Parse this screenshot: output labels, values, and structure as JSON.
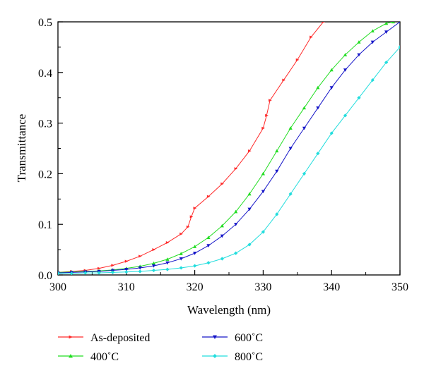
{
  "chart_data": {
    "type": "line",
    "xlabel": "Wavelength (nm)",
    "ylabel": "Transmittance",
    "xlim": [
      300,
      350
    ],
    "ylim": [
      0,
      0.5
    ],
    "x_ticks": [
      300,
      310,
      320,
      330,
      340,
      350
    ],
    "y_ticks": [
      0.0,
      0.1,
      0.2,
      0.3,
      0.4,
      0.5
    ],
    "x_tick_labels": [
      "300",
      "310",
      "320",
      "330",
      "340",
      "350"
    ],
    "y_tick_labels": [
      "0.0",
      "0.1",
      "0.2",
      "0.3",
      "0.4",
      "0.5"
    ],
    "grid": false,
    "legend_position": "bottom",
    "series": [
      {
        "name": "As-deposited",
        "color": "#ff2a2a",
        "marker": "right-triangle",
        "x": [
          300,
          302,
          304,
          306,
          308,
          310,
          312,
          314,
          316,
          318,
          319,
          319.5,
          320,
          322,
          324,
          326,
          328,
          330,
          330.5,
          331,
          333,
          335,
          337,
          338.8
        ],
        "y": [
          0.005,
          0.007,
          0.009,
          0.013,
          0.019,
          0.027,
          0.037,
          0.05,
          0.064,
          0.081,
          0.095,
          0.115,
          0.132,
          0.155,
          0.18,
          0.21,
          0.245,
          0.29,
          0.315,
          0.345,
          0.385,
          0.425,
          0.47,
          0.5
        ]
      },
      {
        "name": "400˚C",
        "color": "#22dd22",
        "marker": "triangle-up",
        "x": [
          300,
          302,
          304,
          306,
          308,
          310,
          312,
          314,
          316,
          318,
          320,
          322,
          324,
          326,
          328,
          330,
          332,
          334,
          336,
          338,
          340,
          342,
          344,
          346,
          348,
          349
        ],
        "y": [
          0.005,
          0.006,
          0.007,
          0.008,
          0.01,
          0.013,
          0.017,
          0.023,
          0.031,
          0.042,
          0.056,
          0.074,
          0.097,
          0.125,
          0.16,
          0.2,
          0.245,
          0.29,
          0.33,
          0.37,
          0.405,
          0.435,
          0.46,
          0.482,
          0.497,
          0.5
        ]
      },
      {
        "name": "600˚C",
        "color": "#1515c8",
        "marker": "triangle-down",
        "x": [
          300,
          302,
          304,
          306,
          308,
          310,
          312,
          314,
          316,
          318,
          320,
          322,
          324,
          326,
          328,
          330,
          332,
          334,
          336,
          338,
          340,
          342,
          344,
          346,
          348,
          350
        ],
        "y": [
          0.004,
          0.005,
          0.006,
          0.007,
          0.009,
          0.011,
          0.014,
          0.018,
          0.024,
          0.032,
          0.043,
          0.058,
          0.077,
          0.1,
          0.13,
          0.165,
          0.205,
          0.25,
          0.29,
          0.33,
          0.37,
          0.405,
          0.435,
          0.46,
          0.48,
          0.5
        ]
      },
      {
        "name": "800˚C",
        "color": "#22dddd",
        "marker": "diamond",
        "x": [
          300,
          302,
          304,
          306,
          308,
          310,
          312,
          314,
          316,
          318,
          320,
          322,
          324,
          326,
          328,
          330,
          332,
          334,
          336,
          338,
          340,
          342,
          344,
          346,
          348,
          350
        ],
        "y": [
          0.003,
          0.003,
          0.004,
          0.004,
          0.005,
          0.006,
          0.007,
          0.009,
          0.011,
          0.014,
          0.018,
          0.024,
          0.032,
          0.043,
          0.06,
          0.085,
          0.12,
          0.16,
          0.2,
          0.24,
          0.28,
          0.315,
          0.35,
          0.385,
          0.42,
          0.45
        ]
      }
    ]
  }
}
